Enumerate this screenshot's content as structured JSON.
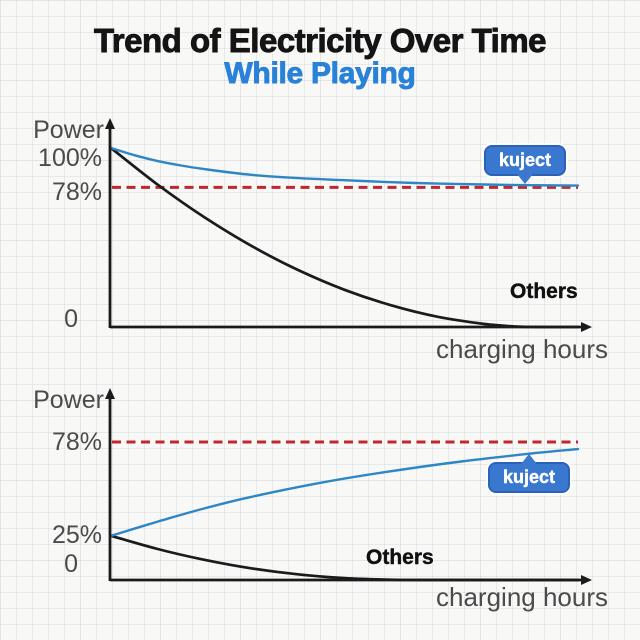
{
  "header": {
    "title": "Trend of Electricity Over Time",
    "subtitle": "While Playing"
  },
  "colors": {
    "subtitle_blue": "#2a82d8",
    "curve_blue": "#2e86c4",
    "curve_black": "#1b1b1b",
    "ref_red": "#c22730",
    "badge_blue": "#3a78cf",
    "axis_gray": "#4b4b4b"
  },
  "chart_data": [
    {
      "type": "line",
      "title": "",
      "ylabel": "Power",
      "xlabel": "charging hours",
      "xlim": [
        0,
        1
      ],
      "ylim": [
        0,
        100
      ],
      "grid": false,
      "legend_position": "inline-labels",
      "yticks": [
        {
          "label": "100%",
          "value": 100
        },
        {
          "label": "78%",
          "value": 78
        },
        {
          "label": "0",
          "value": 0
        }
      ],
      "ref_line": {
        "value": 78,
        "style": "dashed",
        "color": "#c22730"
      },
      "series": [
        {
          "name": "kuject",
          "color": "#2e86c4",
          "badge": true,
          "x": [
            0,
            0.05,
            0.1,
            0.15,
            0.2,
            0.3,
            0.4,
            0.5,
            0.6,
            0.7,
            0.8,
            0.9,
            1
          ],
          "y": [
            100,
            96,
            92.7,
            90.2,
            88.2,
            85,
            83.2,
            82,
            80.9,
            80.1,
            79.6,
            79.2,
            79
          ]
        },
        {
          "name": "Others",
          "color": "#1b1b1b",
          "badge": false,
          "x": [
            0,
            0.1,
            0.2,
            0.3,
            0.4,
            0.5,
            0.6,
            0.7,
            0.8,
            0.86,
            0.92,
            1
          ],
          "y": [
            100,
            79.5,
            61.3,
            45.4,
            31.9,
            20.8,
            12.1,
            5.7,
            1.7,
            0.4,
            0,
            0
          ]
        }
      ]
    },
    {
      "type": "line",
      "title": "",
      "ylabel": "Power",
      "xlabel": "charging hours",
      "xlim": [
        0,
        1
      ],
      "ylim": [
        0,
        100
      ],
      "grid": false,
      "legend_position": "inline-labels",
      "yticks": [
        {
          "label": "78%",
          "value": 78
        },
        {
          "label": "25%",
          "value": 25
        },
        {
          "label": "0",
          "value": 0
        }
      ],
      "ref_line": {
        "value": 78,
        "style": "dashed",
        "color": "#c22730"
      },
      "series": [
        {
          "name": "kuject",
          "color": "#2e86c4",
          "badge": true,
          "x": [
            0,
            0.1,
            0.2,
            0.3,
            0.45,
            0.6,
            0.75,
            0.9,
            1
          ],
          "y": [
            25,
            33,
            40.5,
            47,
            55,
            61.5,
            67,
            71.5,
            74
          ]
        },
        {
          "name": "Others",
          "color": "#1b1b1b",
          "badge": false,
          "x": [
            0,
            0.1,
            0.2,
            0.3,
            0.4,
            0.5,
            0.6,
            0.68,
            0.8,
            1
          ],
          "y": [
            25,
            17.5,
            11.4,
            6.6,
            3.2,
            1.1,
            0.15,
            0,
            0,
            0
          ]
        }
      ]
    }
  ]
}
